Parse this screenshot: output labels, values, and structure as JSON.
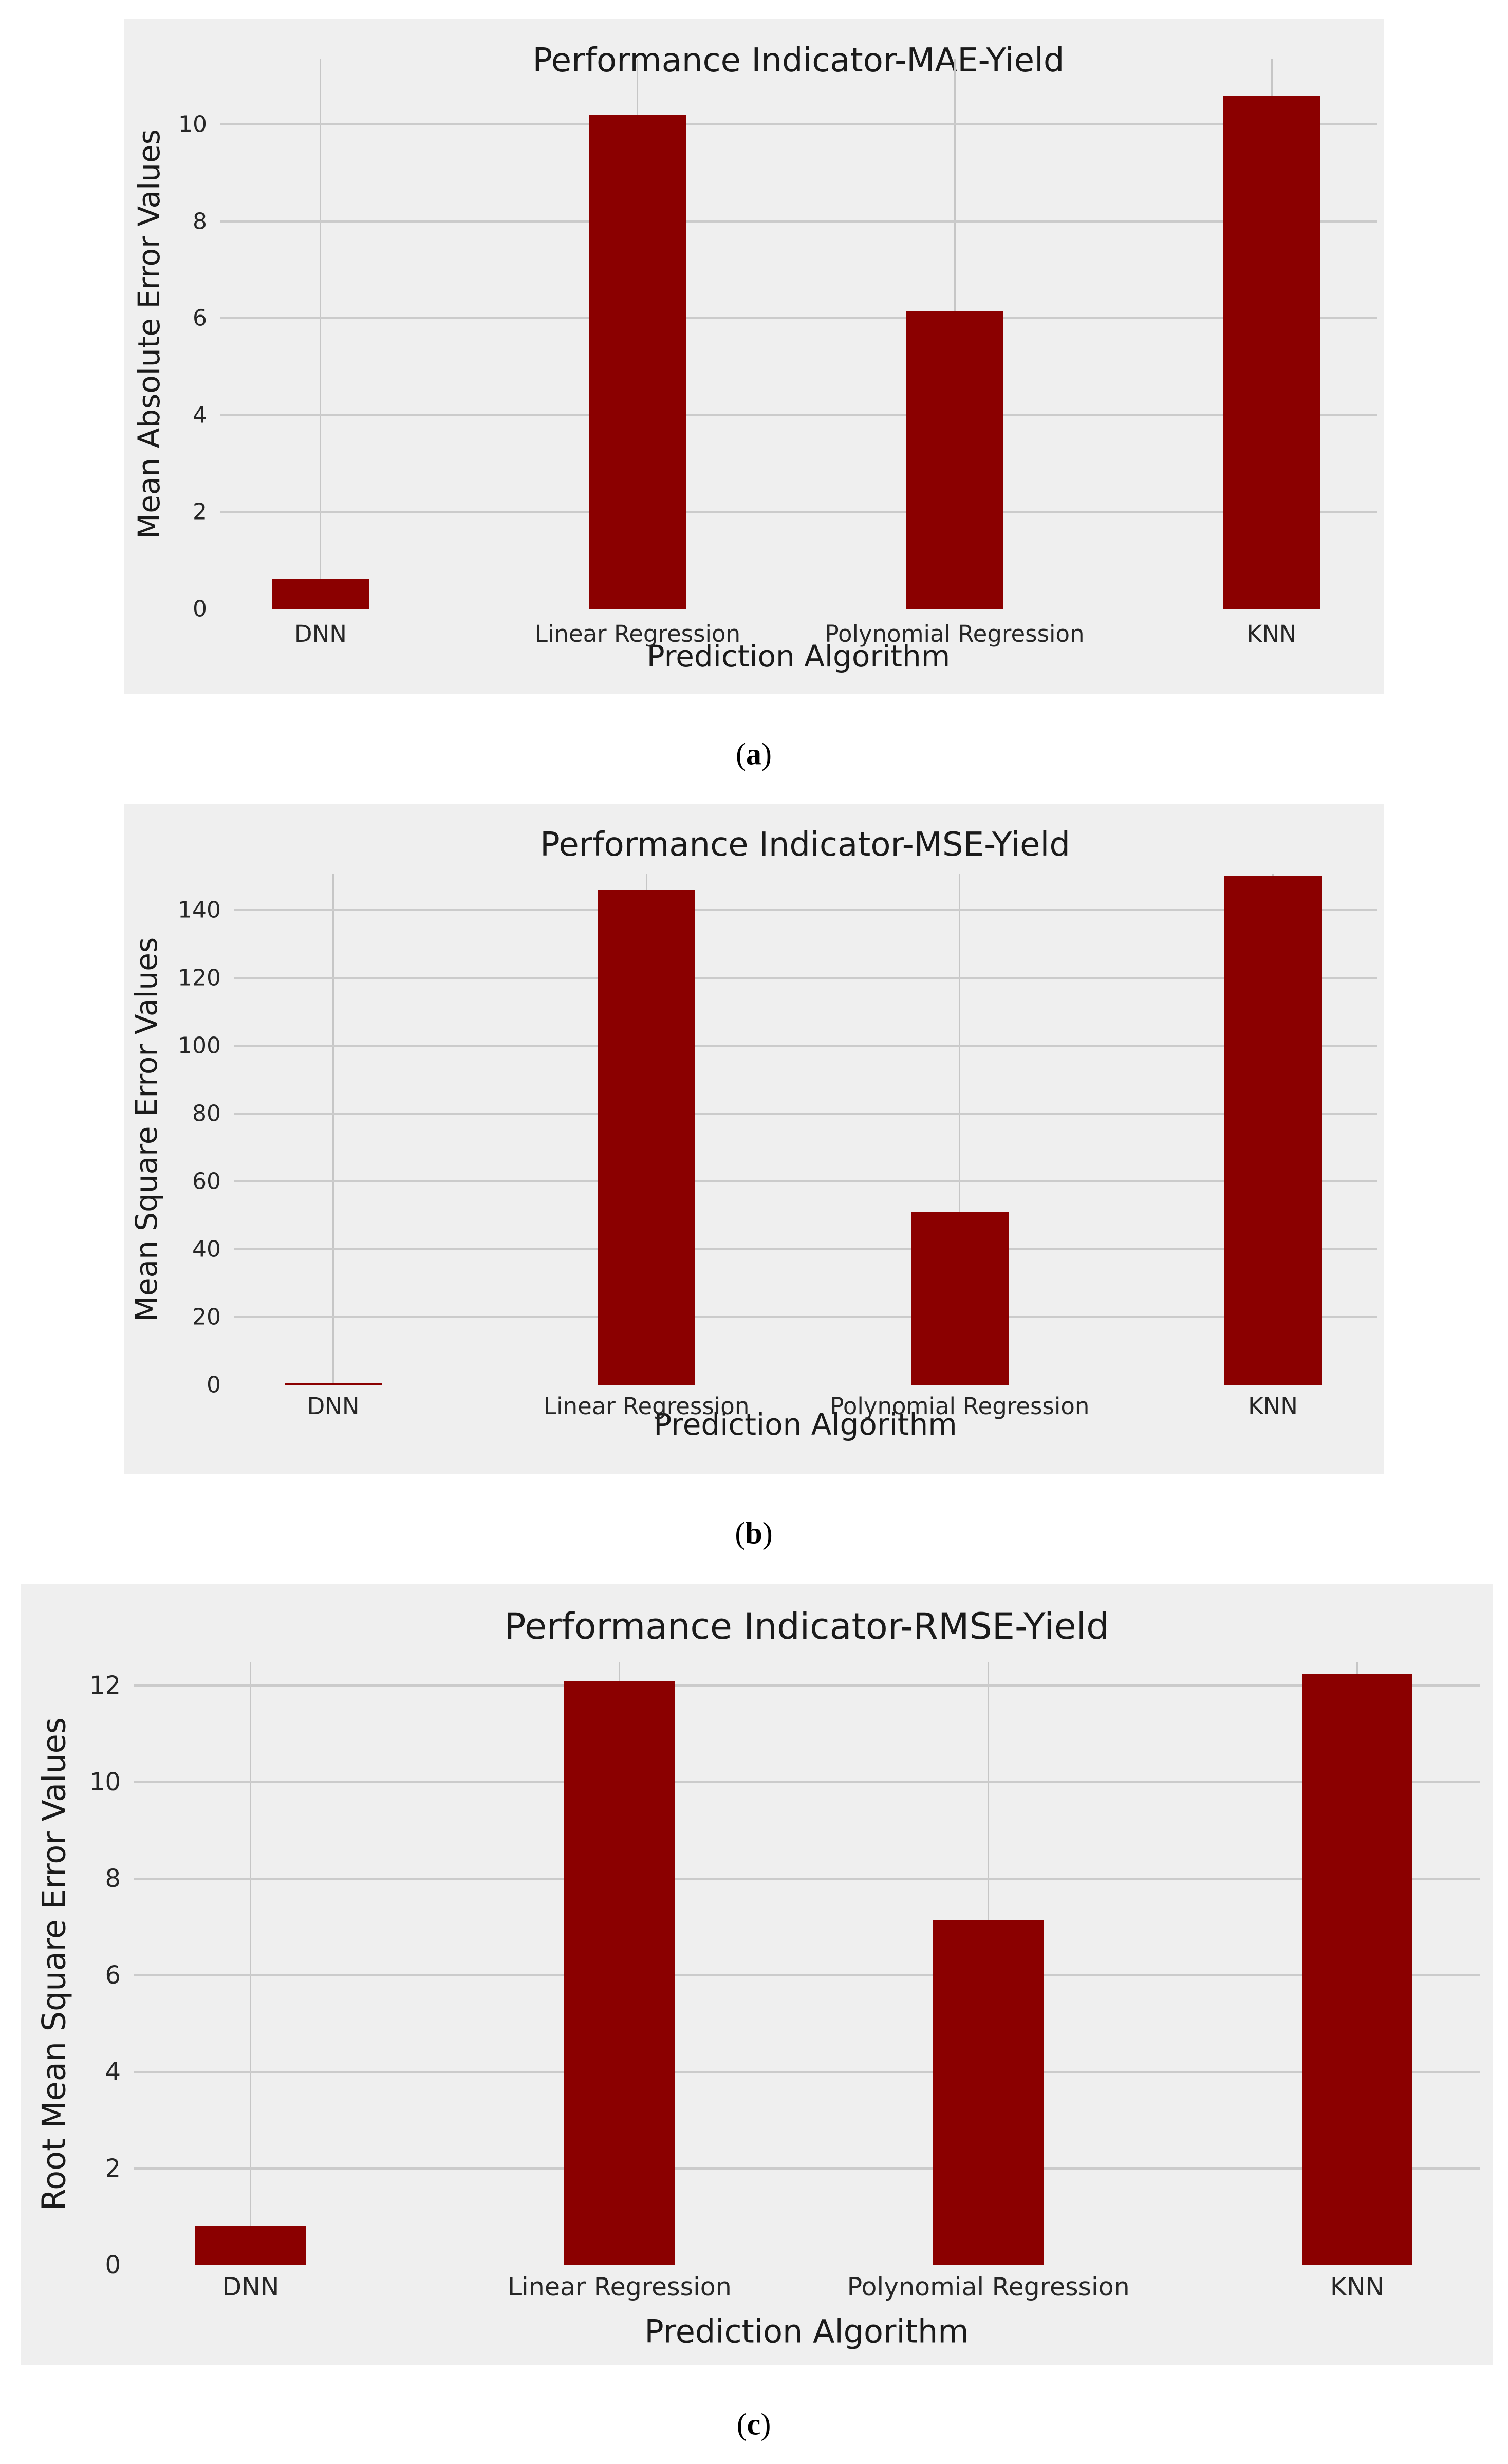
{
  "page": {
    "background": "#ffffff",
    "panel_background": "#efefef",
    "grid_color": "#cbcbcb",
    "vertical_grid_color": "#c6c6c6",
    "text_color": "#1a1a1a"
  },
  "captions": [
    {
      "pre": "(",
      "letter": "a",
      "post": ")"
    },
    {
      "pre": "(",
      "letter": "b",
      "post": ")"
    },
    {
      "pre": "(",
      "letter": "c",
      "post": ")"
    }
  ],
  "chart_data": [
    {
      "type": "bar",
      "title": "Performance Indicator-MAE-Yield",
      "xlabel": "Prediction Algorithm",
      "ylabel": "Mean Absolute Error Values",
      "categories": [
        "DNN",
        "Linear Regression",
        "Polynomial Regression",
        "KNN"
      ],
      "values": [
        0.63,
        10.2,
        6.15,
        10.6
      ],
      "yticks": [
        0,
        2,
        4,
        6,
        8,
        10
      ],
      "ylim": [
        0,
        11.35
      ],
      "bar_color": "#8b0000",
      "grid": true,
      "legend": "none"
    },
    {
      "type": "bar",
      "title": "Performance Indicator-MSE-Yield",
      "xlabel": "Prediction Algorithm",
      "ylabel": "Mean Square Error Values",
      "categories": [
        "DNN",
        "Linear Regression",
        "Polynomial Regression",
        "KNN"
      ],
      "values": [
        0.4,
        146,
        51,
        150
      ],
      "yticks": [
        0,
        20,
        40,
        60,
        80,
        100,
        120,
        140
      ],
      "ylim": [
        0,
        150.8
      ],
      "bar_color": "#8b0000",
      "grid": true,
      "legend": "none"
    },
    {
      "type": "bar",
      "title": "Performance Indicator-RMSE-Yield",
      "xlabel": "Prediction Algorithm",
      "ylabel": "Root Mean Square Error Values",
      "categories": [
        "DNN",
        "Linear Regression",
        "Polynomial Regression",
        "KNN"
      ],
      "values": [
        0.82,
        12.1,
        7.15,
        12.25
      ],
      "yticks": [
        0,
        2,
        4,
        6,
        8,
        10,
        12
      ],
      "ylim": [
        0,
        12.48
      ],
      "bar_color": "#8b0000",
      "grid": true,
      "legend": "none"
    }
  ]
}
